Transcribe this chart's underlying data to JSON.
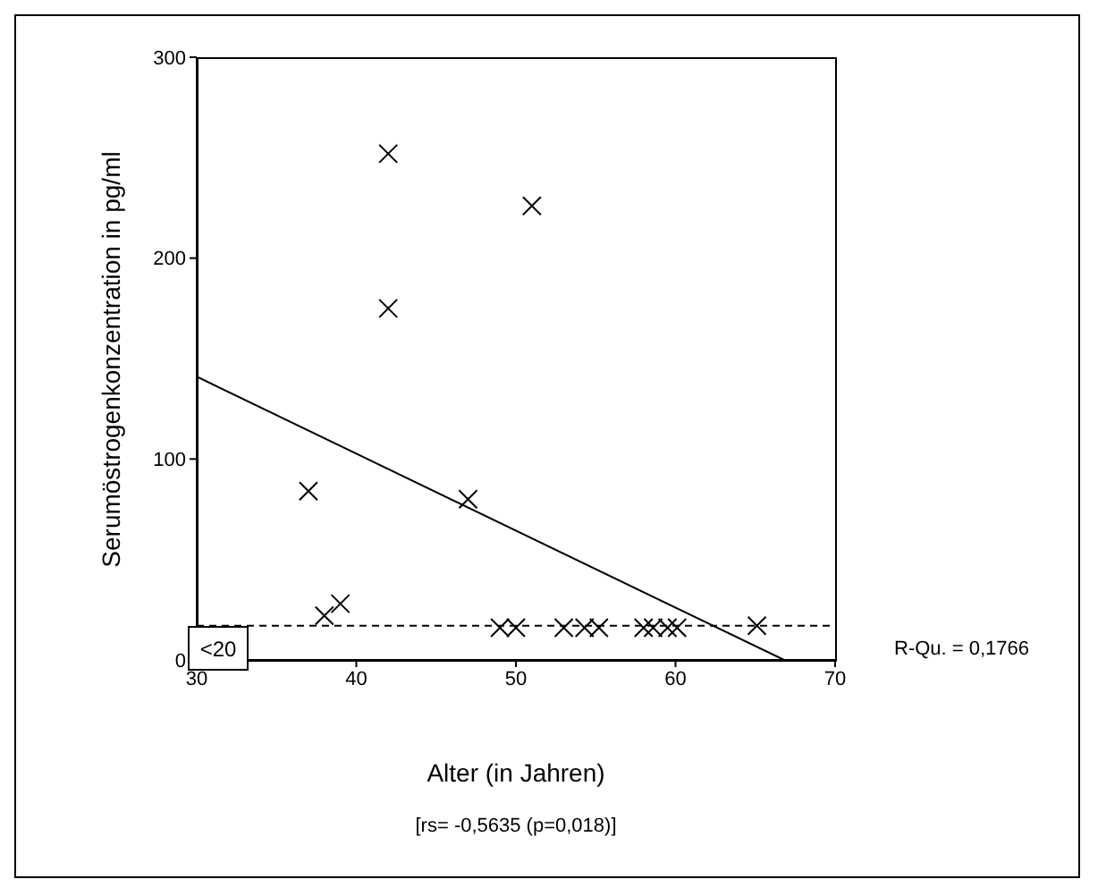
{
  "chart_data": {
    "type": "scatter",
    "xlabel": "Alter (in Jahren)",
    "ylabel": "Serumöstrogenkonzentration in pg/ml",
    "xlim": [
      30,
      70
    ],
    "xticks": [
      30,
      40,
      50,
      60,
      70
    ],
    "ylim": [
      0,
      300
    ],
    "yticks": [
      0,
      100,
      200,
      300
    ],
    "series": [
      {
        "marker": "cross",
        "color": "#000000",
        "x": [
          42,
          51,
          42,
          37,
          47,
          38,
          39,
          49,
          50,
          53,
          54.3,
          55.2,
          58,
          58.6,
          59.5,
          60.1,
          65.1
        ],
        "values": [
          252,
          226,
          175,
          84,
          80,
          22,
          28,
          16,
          16,
          16,
          16,
          16,
          16,
          16,
          16,
          16,
          17
        ]
      },
      {
        "type": "line",
        "color": "#000000",
        "x": [
          30,
          66.8
        ],
        "values": [
          141,
          0
        ]
      }
    ],
    "ref_lines": [
      {
        "axis": "y",
        "value": 17,
        "line_style": "dashed",
        "color": "#000000"
      }
    ],
    "annotations": [
      "<20",
      "R-Qu. = 0,1766",
      "[rs= -0,5635 (p=0,018)]"
    ]
  }
}
